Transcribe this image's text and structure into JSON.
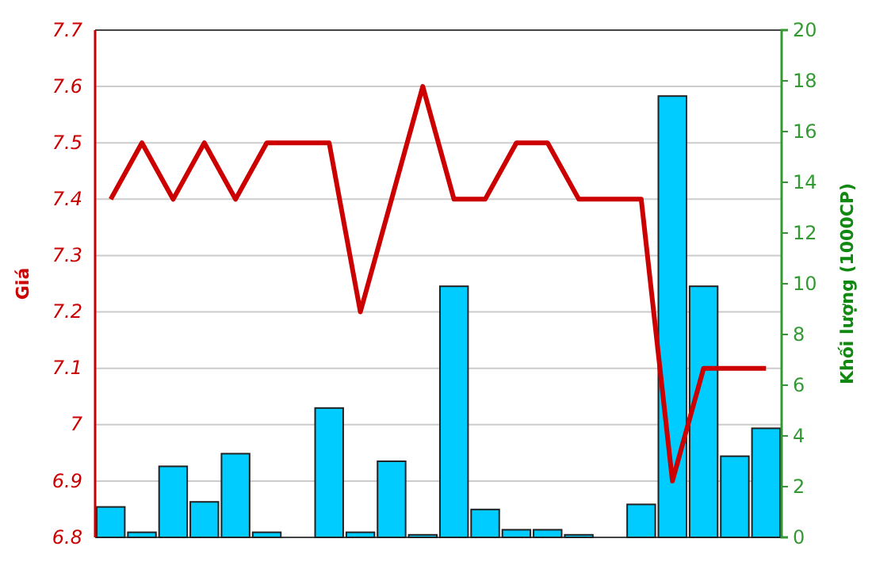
{
  "chart_data": {
    "type": "bar",
    "ylabel": "Giá",
    "y2label": "Khối lượng (1000CP)",
    "categories": [
      null,
      null,
      null,
      null,
      null,
      null,
      null,
      null,
      null,
      null,
      null,
      null,
      null,
      null,
      null,
      null,
      null,
      null,
      null,
      null,
      null,
      null
    ],
    "series": [
      {
        "axis": "y2",
        "color": "#00ccff",
        "values": [
          1.2,
          0.2,
          2.8,
          1.4,
          3.3,
          0.2,
          0,
          5.1,
          0.2,
          3.0,
          0.1,
          9.9,
          1.1,
          0.3,
          0.3,
          0.1,
          0,
          1.3,
          17.4,
          9.9,
          3.2,
          4.3
        ]
      },
      {
        "type": "line",
        "axis": "y",
        "color": "#cc0000",
        "values": [
          7.4,
          7.5,
          7.4,
          7.5,
          7.4,
          7.5,
          7.5,
          7.5,
          7.2,
          7.4,
          7.6,
          7.4,
          7.4,
          7.5,
          7.5,
          7.4,
          7.4,
          7.4,
          6.9,
          7.1,
          7.1,
          7.1
        ]
      }
    ],
    "ylim": [
      6.8,
      7.7
    ],
    "yticks": [
      6.8,
      6.9,
      7,
      7.1,
      7.2,
      7.3,
      7.4,
      7.5,
      7.6,
      7.7
    ],
    "y2lim": [
      0,
      20
    ],
    "y2ticks": [
      0,
      2,
      4,
      6,
      8,
      10,
      12,
      14,
      16,
      18,
      20
    ],
    "grid": "y",
    "marker": "none",
    "line_style": "solid"
  }
}
